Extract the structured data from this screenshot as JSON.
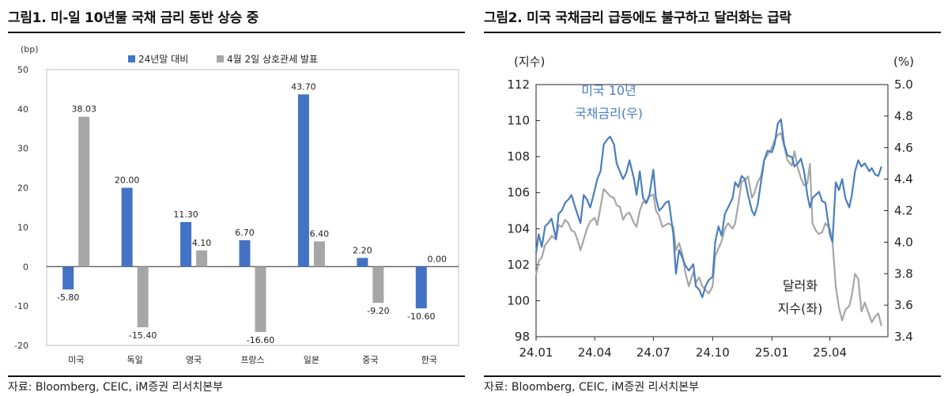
{
  "figure1": {
    "title": "그림1.  미-일 10년물 국채 금리 동반 상승 중",
    "source": "자료: Bloomberg, CEIC, iM증권 리서치본부"
  },
  "figure2": {
    "title": "그림2.  미국 국채금리 급등에도 불구하고 달러화는 급락",
    "source": "자료: Bloomberg, CEIC, iM증권 리서치본부"
  },
  "chart_data": [
    {
      "type": "bar",
      "unit": "(bp)",
      "categories": [
        "미국",
        "독일",
        "영국",
        "프랑스",
        "일본",
        "중국",
        "한국"
      ],
      "series": [
        {
          "name": "24년말 대비",
          "color": "#4472c4",
          "values": [
            -5.8,
            20.0,
            11.3,
            6.7,
            43.7,
            2.2,
            -10.6
          ],
          "labels": [
            "-5.80",
            "20.00",
            "11.30",
            "6.70",
            "43.70",
            "2.20",
            "-10.60"
          ]
        },
        {
          "name": "4월 2일 상호관세 발표",
          "color": "#a6a6a6",
          "values": [
            38.03,
            -15.4,
            4.1,
            -16.6,
            6.4,
            -9.2,
            0.0
          ],
          "labels": [
            "38.03",
            "-15.40",
            "4.10",
            "-16.60",
            "6.40",
            "-9.20",
            "0.00"
          ]
        }
      ],
      "yticks": [
        "50",
        "40",
        "30",
        "20",
        "10",
        "0",
        "-10",
        "-20"
      ],
      "ylim": [
        -20,
        50
      ],
      "legend": "top"
    },
    {
      "type": "line",
      "left_axis_label": "(지수)",
      "right_axis_label": "(%)",
      "x_ticks": [
        "24.01",
        "24.04",
        "24.07",
        "24.10",
        "25.01",
        "25.04"
      ],
      "left_ticks": [
        "112",
        "110",
        "108",
        "106",
        "104",
        "102",
        "100",
        "98"
      ],
      "right_ticks": [
        "5.0",
        "4.8",
        "4.6",
        "4.4",
        "4.2",
        "4.0",
        "3.8",
        "3.6",
        "3.4"
      ],
      "left_ylim": [
        98,
        112
      ],
      "right_ylim": [
        3.4,
        5.0
      ],
      "x_range": [
        "2024-01-01",
        "2025-06-30"
      ],
      "series": [
        {
          "name": "미국 10년 국채금리(우)",
          "label_lines": [
            "미국 10년",
            "국채금리(우)"
          ],
          "color": "#4a7ebf",
          "axis": "right",
          "dates": [
            "2024-01-01",
            "2024-01-05",
            "2024-01-10",
            "2024-01-15",
            "2024-01-20",
            "2024-01-25",
            "2024-02-01",
            "2024-02-05",
            "2024-02-10",
            "2024-02-15",
            "2024-02-20",
            "2024-02-25",
            "2024-03-01",
            "2024-03-05",
            "2024-03-10",
            "2024-03-15",
            "2024-03-20",
            "2024-03-25",
            "2024-04-01",
            "2024-04-05",
            "2024-04-10",
            "2024-04-15",
            "2024-04-20",
            "2024-04-25",
            "2024-05-01",
            "2024-05-05",
            "2024-05-10",
            "2024-05-15",
            "2024-05-20",
            "2024-05-25",
            "2024-06-01",
            "2024-06-05",
            "2024-06-10",
            "2024-06-15",
            "2024-06-20",
            "2024-06-25",
            "2024-07-01",
            "2024-07-05",
            "2024-07-10",
            "2024-07-15",
            "2024-07-20",
            "2024-07-25",
            "2024-08-01",
            "2024-08-05",
            "2024-08-10",
            "2024-08-15",
            "2024-08-20",
            "2024-08-25",
            "2024-09-01",
            "2024-09-05",
            "2024-09-10",
            "2024-09-15",
            "2024-09-20",
            "2024-09-25",
            "2024-10-01",
            "2024-10-05",
            "2024-10-10",
            "2024-10-15",
            "2024-10-20",
            "2024-10-25",
            "2024-11-01",
            "2024-11-05",
            "2024-11-10",
            "2024-11-15",
            "2024-11-20",
            "2024-11-25",
            "2024-12-01",
            "2024-12-05",
            "2024-12-10",
            "2024-12-15",
            "2024-12-20",
            "2024-12-25",
            "2025-01-01",
            "2025-01-05",
            "2025-01-10",
            "2025-01-15",
            "2025-01-20",
            "2025-01-25",
            "2025-02-01",
            "2025-02-05",
            "2025-02-10",
            "2025-02-15",
            "2025-02-20",
            "2025-02-25",
            "2025-03-01",
            "2025-03-05",
            "2025-03-10",
            "2025-03-15",
            "2025-03-20",
            "2025-03-25",
            "2025-04-01",
            "2025-04-05",
            "2025-04-10",
            "2025-04-15",
            "2025-04-20",
            "2025-04-25",
            "2025-05-01",
            "2025-05-05",
            "2025-05-10",
            "2025-05-15",
            "2025-05-20",
            "2025-05-25",
            "2025-06-01",
            "2025-06-05",
            "2025-06-10",
            "2025-06-15",
            "2025-06-20"
          ],
          "values": [
            3.93,
            4.05,
            3.97,
            4.1,
            4.12,
            4.15,
            4.02,
            4.18,
            4.2,
            4.25,
            4.27,
            4.3,
            4.23,
            4.18,
            4.12,
            4.3,
            4.27,
            4.22,
            4.33,
            4.4,
            4.45,
            4.62,
            4.65,
            4.67,
            4.62,
            4.5,
            4.45,
            4.4,
            4.44,
            4.52,
            4.4,
            4.3,
            4.45,
            4.28,
            4.25,
            4.3,
            4.46,
            4.28,
            4.2,
            4.22,
            4.25,
            4.26,
            4.05,
            3.8,
            3.95,
            3.9,
            3.85,
            3.82,
            3.86,
            3.72,
            3.7,
            3.65,
            3.72,
            3.76,
            3.78,
            4.0,
            4.1,
            4.04,
            4.18,
            4.22,
            4.28,
            4.38,
            4.35,
            4.42,
            4.4,
            4.3,
            4.2,
            4.17,
            4.24,
            4.38,
            4.52,
            4.58,
            4.57,
            4.62,
            4.75,
            4.78,
            4.62,
            4.55,
            4.54,
            4.48,
            4.5,
            4.53,
            4.45,
            4.3,
            4.22,
            4.28,
            4.3,
            4.32,
            4.26,
            4.25,
            4.05,
            4.0,
            4.38,
            4.33,
            4.4,
            4.28,
            4.22,
            4.3,
            4.45,
            4.52,
            4.48,
            4.5,
            4.45,
            4.47,
            4.43,
            4.42,
            4.48
          ]
        },
        {
          "name": "달러화 지수(좌)",
          "label_lines": [
            "달러화",
            "지수(좌)"
          ],
          "color": "#a6a6a6",
          "axis": "left",
          "dates": [
            "2024-01-01",
            "2024-01-05",
            "2024-01-10",
            "2024-01-15",
            "2024-01-20",
            "2024-01-25",
            "2024-02-01",
            "2024-02-05",
            "2024-02-10",
            "2024-02-15",
            "2024-02-20",
            "2024-02-25",
            "2024-03-01",
            "2024-03-05",
            "2024-03-10",
            "2024-03-15",
            "2024-03-20",
            "2024-03-25",
            "2024-04-01",
            "2024-04-05",
            "2024-04-10",
            "2024-04-15",
            "2024-04-20",
            "2024-04-25",
            "2024-05-01",
            "2024-05-05",
            "2024-05-10",
            "2024-05-15",
            "2024-05-20",
            "2024-05-25",
            "2024-06-01",
            "2024-06-05",
            "2024-06-10",
            "2024-06-15",
            "2024-06-20",
            "2024-06-25",
            "2024-07-01",
            "2024-07-05",
            "2024-07-10",
            "2024-07-15",
            "2024-07-20",
            "2024-07-25",
            "2024-08-01",
            "2024-08-05",
            "2024-08-10",
            "2024-08-15",
            "2024-08-20",
            "2024-08-25",
            "2024-09-01",
            "2024-09-05",
            "2024-09-10",
            "2024-09-15",
            "2024-09-20",
            "2024-09-25",
            "2024-10-01",
            "2024-10-05",
            "2024-10-10",
            "2024-10-15",
            "2024-10-20",
            "2024-10-25",
            "2024-11-01",
            "2024-11-05",
            "2024-11-10",
            "2024-11-15",
            "2024-11-20",
            "2024-11-25",
            "2024-12-01",
            "2024-12-05",
            "2024-12-10",
            "2024-12-15",
            "2024-12-20",
            "2024-12-25",
            "2025-01-01",
            "2025-01-05",
            "2025-01-10",
            "2025-01-15",
            "2025-01-20",
            "2025-01-25",
            "2025-02-01",
            "2025-02-05",
            "2025-02-10",
            "2025-02-15",
            "2025-02-20",
            "2025-02-25",
            "2025-03-01",
            "2025-03-05",
            "2025-03-10",
            "2025-03-15",
            "2025-03-20",
            "2025-03-25",
            "2025-04-01",
            "2025-04-05",
            "2025-04-10",
            "2025-04-15",
            "2025-04-20",
            "2025-04-25",
            "2025-05-01",
            "2025-05-05",
            "2025-05-10",
            "2025-05-15",
            "2025-05-20",
            "2025-05-25",
            "2025-06-01",
            "2025-06-05",
            "2025-06-10",
            "2025-06-15",
            "2025-06-20"
          ],
          "values": [
            101.4,
            102.2,
            102.4,
            103.1,
            103.3,
            103.6,
            103.4,
            104.2,
            104.1,
            104.5,
            104.3,
            103.9,
            103.8,
            103.4,
            102.8,
            103.4,
            104.0,
            104.4,
            104.6,
            104.2,
            105.2,
            106.2,
            106.0,
            105.8,
            105.7,
            105.3,
            105.2,
            104.5,
            104.8,
            104.9,
            104.3,
            104.1,
            105.0,
            105.5,
            105.4,
            105.8,
            105.9,
            105.0,
            104.7,
            104.1,
            104.2,
            104.3,
            104.1,
            102.8,
            103.2,
            102.6,
            101.5,
            100.8,
            101.6,
            101.0,
            101.3,
            100.8,
            100.6,
            100.4,
            100.8,
            102.5,
            102.9,
            103.3,
            104.0,
            104.3,
            104.0,
            104.3,
            105.4,
            106.6,
            106.7,
            106.9,
            105.7,
            106.0,
            106.6,
            106.9,
            107.8,
            108.1,
            108.5,
            108.9,
            109.2,
            109.3,
            108.6,
            107.8,
            107.5,
            108.3,
            107.4,
            106.8,
            106.4,
            106.5,
            107.6,
            104.3,
            103.9,
            103.7,
            103.8,
            104.3,
            104.0,
            103.3,
            100.8,
            99.6,
            98.9,
            99.5,
            99.7,
            100.3,
            101.5,
            101.2,
            99.4,
            99.9,
            99.2,
            98.8,
            99.1,
            99.3,
            98.6
          ]
        }
      ]
    }
  ]
}
